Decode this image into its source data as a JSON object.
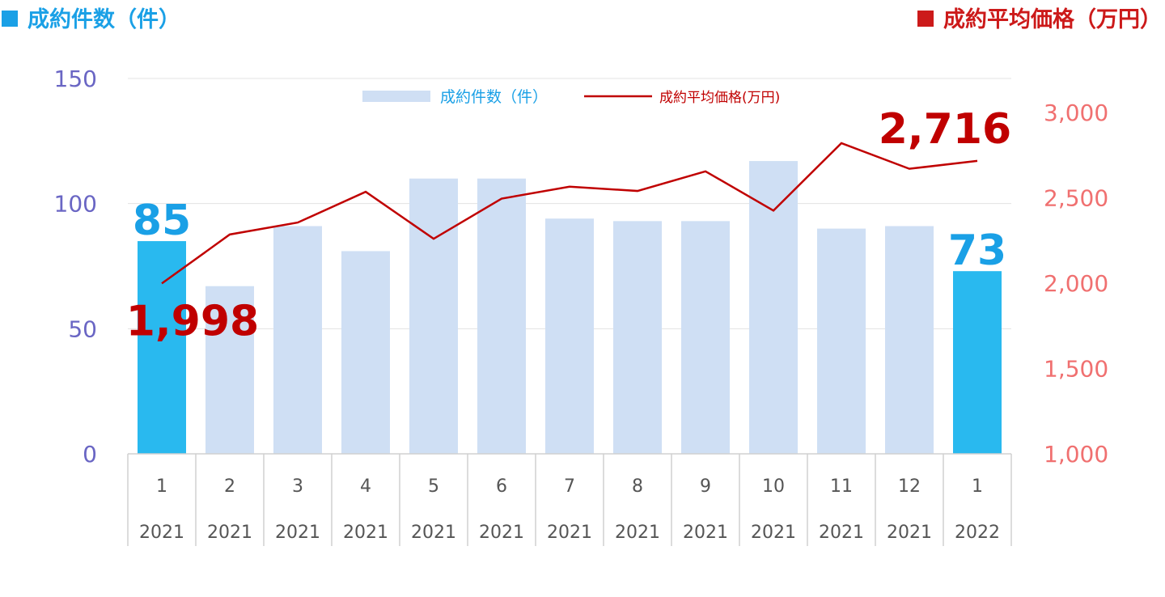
{
  "header": {
    "left_title": "成約件数（件）",
    "right_title": "成約平均価格（万円）"
  },
  "colors": {
    "bar_highlight": "#29b9ef",
    "bar_normal": "#cfdff4",
    "line": "#c00000",
    "left_axis": "#6a66c4",
    "right_axis": "#f07070",
    "count_label": "#1aa0e6",
    "price_label": "#c00000",
    "grid": "#e3e3e3"
  },
  "chart_data": {
    "type": "bar",
    "categories": [
      "1",
      "2",
      "3",
      "4",
      "5",
      "6",
      "7",
      "8",
      "9",
      "10",
      "11",
      "12",
      "1"
    ],
    "category_years": [
      "2021",
      "2021",
      "2021",
      "2021",
      "2021",
      "2021",
      "2021",
      "2021",
      "2021",
      "2021",
      "2021",
      "2021",
      "2022"
    ],
    "series": [
      {
        "name": "成約件数（件）",
        "type": "bar",
        "axis": "left",
        "values": [
          85,
          67,
          91,
          81,
          110,
          110,
          94,
          93,
          93,
          117,
          90,
          91,
          73
        ]
      },
      {
        "name": "成約平均価格(万円)",
        "type": "line",
        "axis": "right",
        "values": [
          1998,
          2285,
          2355,
          2535,
          2260,
          2495,
          2565,
          2540,
          2655,
          2425,
          2820,
          2670,
          2716
        ]
      }
    ],
    "left_axis": {
      "min": 0,
      "max": 150,
      "ticks": [
        "0",
        "50",
        "100",
        "150"
      ]
    },
    "right_axis": {
      "min": 1000,
      "max": 3000,
      "ticks": [
        "1,000",
        "1,500",
        "2,000",
        "2,500",
        "3,000"
      ]
    },
    "highlight_indices": [
      0,
      12
    ],
    "annotations": {
      "first_count": "85",
      "last_count": "73",
      "first_price": "1,998",
      "last_price": "2,716"
    },
    "legend": {
      "position": "top-center"
    },
    "grid": true
  }
}
